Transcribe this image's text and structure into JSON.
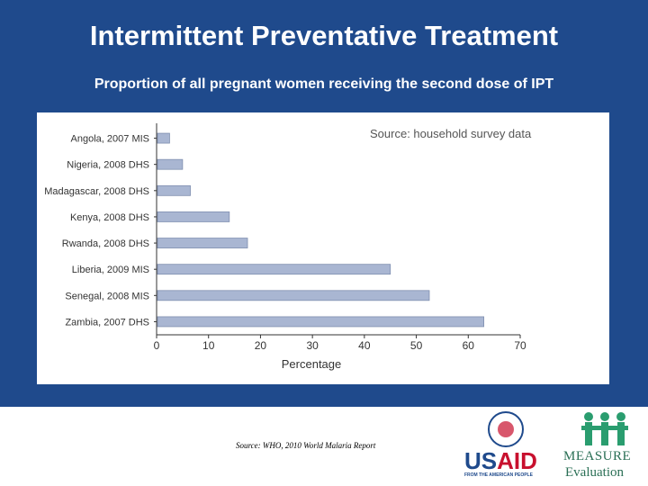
{
  "slide": {
    "title": "Intermittent Preventative Treatment",
    "subtitle": "Proportion of all pregnant women receiving the second dose of IPT",
    "source_note": "Source: WHO, 2010 World Malaria Report",
    "colors": {
      "header_bg": "#1f4a8c",
      "bar_fill": "#a9b6d2",
      "bar_stroke": "#7f8fb0"
    }
  },
  "logos": {
    "usaid": {
      "word_left": "US",
      "word_right": "AID",
      "tagline": "FROM THE AMERICAN PEOPLE"
    },
    "measure": {
      "word": "MEASURE",
      "sub": "Evaluation"
    }
  },
  "chart_data": {
    "type": "bar",
    "orientation": "horizontal",
    "annotation": "Source: household survey data",
    "categories": [
      "Angola, 2007 MIS",
      "Nigeria, 2008 DHS",
      "Madagascar, 2008 DHS",
      "Kenya, 2008 DHS",
      "Rwanda, 2008 DHS",
      "Liberia, 2009 MIS",
      "Senegal, 2008 MIS",
      "Zambia, 2007 DHS"
    ],
    "values": [
      2.5,
      5,
      6.5,
      14,
      17.5,
      45,
      52.5,
      63
    ],
    "xlabel": "Percentage",
    "ylabel": "",
    "xlim": [
      0,
      70
    ],
    "xticks": [
      0,
      10,
      20,
      30,
      40,
      50,
      60,
      70
    ],
    "grid": false
  }
}
